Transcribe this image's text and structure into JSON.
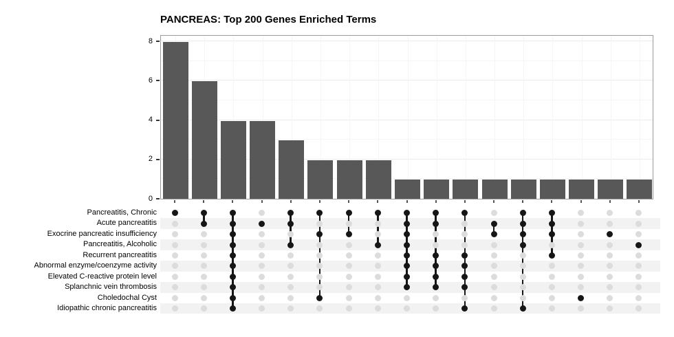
{
  "title": "PANCREAS: Top 200 Genes Enriched Terms",
  "chart_data": {
    "type": "bar",
    "subtype": "upset-plot",
    "title": "PANCREAS: Top 200 Genes Enriched Terms",
    "ylabel": "",
    "xlabel": "",
    "ylim": [
      0,
      8.35
    ],
    "y_ticks": [
      0,
      2,
      4,
      6,
      8
    ],
    "grid": "on",
    "legend": "none",
    "sets": [
      "Pancreatitis, Chronic",
      "Acute pancreatitis",
      "Exocrine pancreatic insufficiency",
      "Pancreatitis, Alcoholic",
      "Recurrent pancreatitis",
      "Abnormal enzyme/coenzyme activity",
      "Elevated C-reactive protein level",
      "Splanchnic vein thrombosis",
      "Choledochal Cyst",
      "Idiopathic chronic pancreatitis"
    ],
    "intersections": [
      {
        "size": 8,
        "sets": [
          0
        ]
      },
      {
        "size": 6,
        "sets": [
          0,
          1
        ]
      },
      {
        "size": 4,
        "sets": [
          0,
          1,
          2,
          3,
          4,
          5,
          6,
          7,
          8,
          9
        ]
      },
      {
        "size": 4,
        "sets": [
          1
        ]
      },
      {
        "size": 3,
        "sets": [
          0,
          1,
          3
        ]
      },
      {
        "size": 2,
        "sets": [
          0,
          2,
          8
        ]
      },
      {
        "size": 2,
        "sets": [
          0,
          2
        ]
      },
      {
        "size": 2,
        "sets": [
          0,
          3
        ]
      },
      {
        "size": 1,
        "sets": [
          0,
          1,
          2,
          3,
          4,
          5,
          6,
          7
        ]
      },
      {
        "size": 1,
        "sets": [
          0,
          1,
          4,
          5,
          6,
          7
        ]
      },
      {
        "size": 1,
        "sets": [
          0,
          4,
          5,
          6,
          7,
          9
        ]
      },
      {
        "size": 1,
        "sets": [
          1,
          2
        ]
      },
      {
        "size": 1,
        "sets": [
          0,
          1,
          2,
          3,
          9
        ]
      },
      {
        "size": 1,
        "sets": [
          0,
          1,
          2,
          4
        ]
      },
      {
        "size": 1,
        "sets": [
          8
        ]
      },
      {
        "size": 1,
        "sets": [
          2
        ]
      },
      {
        "size": 1,
        "sets": [
          3
        ]
      }
    ],
    "colors": {
      "bar": "#585858",
      "dot_active": "#161616",
      "dot_inactive": "#dcdcdc",
      "stripe": "#f2f2f2",
      "grid_major": "#ebebeb",
      "grid_minor": "#f5f5f5",
      "panel_border": "#9a9a9a"
    }
  }
}
